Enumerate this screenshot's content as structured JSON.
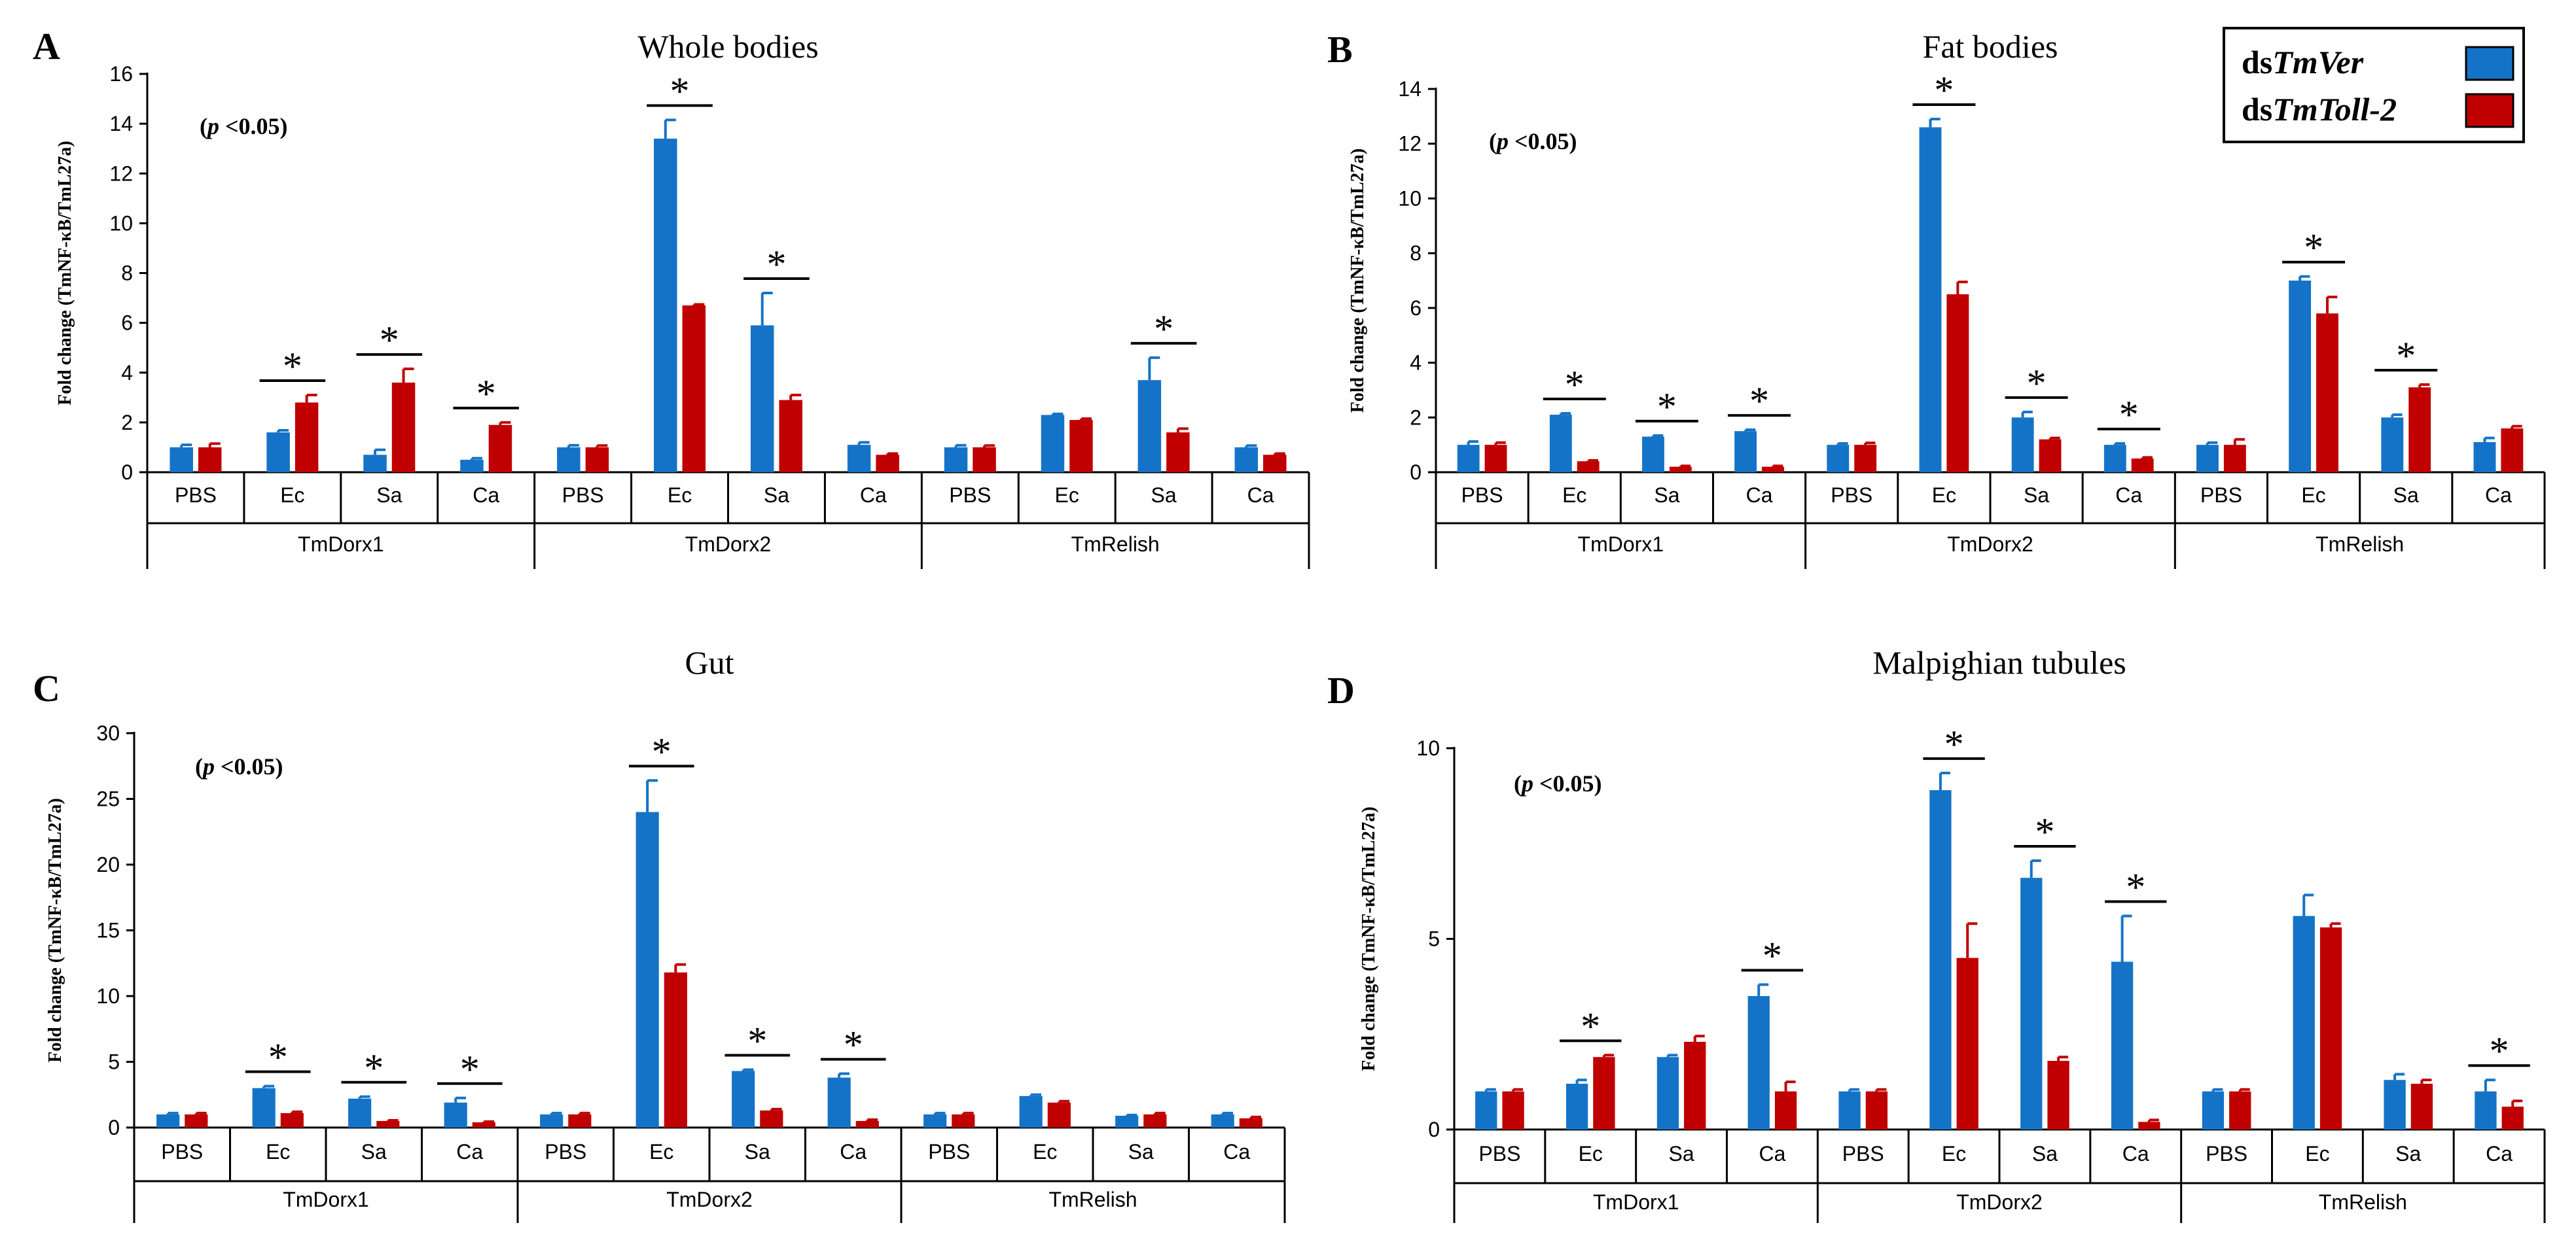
{
  "colors": {
    "series_a": "#1573c7",
    "series_b": "#c00000",
    "axis": "#000000",
    "background": "#ffffff"
  },
  "legend": {
    "entries": [
      {
        "prefix": "ds",
        "name": "TmVer",
        "color": "#1573c7"
      },
      {
        "prefix": "ds",
        "name": "TmToll-2",
        "color": "#c00000"
      }
    ]
  },
  "chart_data": [
    {
      "type": "bar",
      "panel": "A",
      "title": "Whole bodies",
      "ylabel": "Fold change (TmNF-κB/TmL27a)",
      "ylim": [
        0,
        16
      ],
      "yticks": [
        "0",
        "2",
        "4",
        "6",
        "8",
        "10",
        "12",
        "14",
        "16"
      ],
      "ytick_values": [
        0,
        2,
        4,
        6,
        8,
        10,
        12,
        14,
        16
      ],
      "significance_note": "(p <0.05)",
      "groups": [
        "TmDorx1",
        "TmDorx2",
        "TmRelish"
      ],
      "categories": [
        "PBS",
        "Ec",
        "Sa",
        "Ca",
        "PBS",
        "Ec",
        "Sa",
        "Ca",
        "PBS",
        "Ec",
        "Sa",
        "Ca"
      ],
      "series": [
        {
          "name": "dsTmVer",
          "values": [
            1.0,
            1.6,
            0.7,
            0.5,
            1.0,
            13.4,
            5.9,
            1.1,
            1.0,
            2.3,
            3.7,
            1.0
          ],
          "errors": [
            0.1,
            0.08,
            0.2,
            0.06,
            0.08,
            0.75,
            1.3,
            0.1,
            0.08,
            0.04,
            0.9,
            0.07
          ]
        },
        {
          "name": "dsTmToll-2",
          "values": [
            1.0,
            2.8,
            3.6,
            1.9,
            1.0,
            6.7,
            2.9,
            0.7,
            1.0,
            2.1,
            1.6,
            0.7
          ],
          "errors": [
            0.15,
            0.3,
            0.55,
            0.1,
            0.07,
            0.04,
            0.2,
            0.05,
            0.07,
            0.05,
            0.15,
            0.05
          ]
        }
      ],
      "significant": [
        false,
        true,
        true,
        true,
        false,
        true,
        true,
        false,
        false,
        false,
        true,
        false
      ],
      "star": "*"
    },
    {
      "type": "bar",
      "panel": "B",
      "title": "Fat bodies",
      "ylabel": "Fold change (TmNF-κB/TmL27a)",
      "ylim": [
        0,
        14
      ],
      "yticks": [
        "0",
        "2",
        "4",
        "6",
        "8",
        "10",
        "12",
        "14"
      ],
      "ytick_values": [
        0,
        2,
        4,
        6,
        8,
        10,
        12,
        14
      ],
      "significance_note": "(p <0.05)",
      "groups": [
        "TmDorx1",
        "TmDorx2",
        "TmRelish"
      ],
      "categories": [
        "PBS",
        "Ec",
        "Sa",
        "Ca",
        "PBS",
        "Ec",
        "Sa",
        "Ca",
        "PBS",
        "Ec",
        "Sa",
        "Ca"
      ],
      "series": [
        {
          "name": "dsTmVer",
          "values": [
            1.0,
            2.1,
            1.3,
            1.5,
            1.0,
            12.6,
            2.0,
            1.0,
            1.0,
            7.0,
            2.0,
            1.1
          ],
          "errors": [
            0.12,
            0.05,
            0.04,
            0.05,
            0.05,
            0.3,
            0.2,
            0.05,
            0.08,
            0.15,
            0.1,
            0.15
          ]
        },
        {
          "name": "dsTmToll-2",
          "values": [
            1.0,
            0.4,
            0.2,
            0.2,
            1.0,
            6.5,
            1.2,
            0.5,
            1.0,
            5.8,
            3.1,
            1.6
          ],
          "errors": [
            0.08,
            0.03,
            0.03,
            0.03,
            0.07,
            0.45,
            0.05,
            0.04,
            0.2,
            0.6,
            0.1,
            0.08
          ]
        }
      ],
      "significant": [
        false,
        true,
        true,
        true,
        false,
        true,
        true,
        true,
        false,
        true,
        true,
        false
      ],
      "star": "*"
    },
    {
      "type": "bar",
      "panel": "C",
      "title": "Gut",
      "ylabel": "Fold change (TmNF-κB/TmL27a)",
      "ylim": [
        0,
        30
      ],
      "yticks": [
        "0",
        "5",
        "10",
        "15",
        "20",
        "25",
        "30"
      ],
      "ytick_values": [
        0,
        5,
        10,
        15,
        20,
        25,
        30
      ],
      "significance_note": "(p <0.05)",
      "groups": [
        "TmDorx1",
        "TmDorx2",
        "TmRelish"
      ],
      "categories": [
        "PBS",
        "Ec",
        "Sa",
        "Ca",
        "PBS",
        "Ec",
        "Sa",
        "Ca",
        "PBS",
        "Ec",
        "Sa",
        "Ca"
      ],
      "series": [
        {
          "name": "dsTmVer",
          "values": [
            1.0,
            3.0,
            2.2,
            1.9,
            1.0,
            24.0,
            4.3,
            3.8,
            1.0,
            2.4,
            0.9,
            1.0
          ],
          "errors": [
            0.1,
            0.15,
            0.15,
            0.35,
            0.1,
            2.4,
            0.1,
            0.3,
            0.1,
            0.1,
            0.05,
            0.1
          ]
        },
        {
          "name": "dsTmToll-2",
          "values": [
            1.0,
            1.1,
            0.5,
            0.4,
            1.0,
            11.8,
            1.3,
            0.5,
            1.0,
            1.9,
            1.0,
            0.7
          ],
          "errors": [
            0.1,
            0.1,
            0.05,
            0.05,
            0.1,
            0.6,
            0.1,
            0.1,
            0.1,
            0.1,
            0.1,
            0.1
          ]
        }
      ],
      "significant": [
        false,
        true,
        true,
        true,
        false,
        true,
        true,
        true,
        false,
        false,
        false,
        false
      ],
      "star": "*"
    },
    {
      "type": "bar",
      "panel": "D",
      "title": "Malpighian tubules",
      "ylabel": "Fold change (TmNF-κB/TmL27a)",
      "ylim": [
        0,
        10
      ],
      "yticks": [
        "0",
        "5",
        "10"
      ],
      "ytick_values": [
        0,
        5,
        10
      ],
      "significance_note": "(p <0.05)",
      "groups": [
        "TmDorx1",
        "TmDorx2",
        "TmRelish"
      ],
      "categories": [
        "PBS",
        "Ec",
        "Sa",
        "Ca",
        "PBS",
        "Ec",
        "Sa",
        "Ca",
        "PBS",
        "Ec",
        "Sa",
        "Ca"
      ],
      "series": [
        {
          "name": "dsTmVer",
          "values": [
            1.0,
            1.2,
            1.9,
            3.5,
            1.0,
            8.9,
            6.6,
            4.4,
            1.0,
            5.6,
            1.3,
            1.0
          ],
          "errors": [
            0.05,
            0.1,
            0.05,
            0.3,
            0.05,
            0.45,
            0.45,
            1.2,
            0.05,
            0.55,
            0.15,
            0.3
          ]
        },
        {
          "name": "dsTmToll-2",
          "values": [
            1.0,
            1.9,
            2.3,
            1.0,
            1.0,
            4.5,
            1.8,
            0.2,
            1.0,
            5.3,
            1.2,
            0.6
          ],
          "errors": [
            0.05,
            0.05,
            0.15,
            0.25,
            0.05,
            0.9,
            0.1,
            0.05,
            0.05,
            0.1,
            0.1,
            0.15
          ]
        }
      ],
      "significant": [
        false,
        true,
        false,
        true,
        false,
        true,
        true,
        true,
        false,
        false,
        false,
        true
      ],
      "star": "*"
    }
  ]
}
